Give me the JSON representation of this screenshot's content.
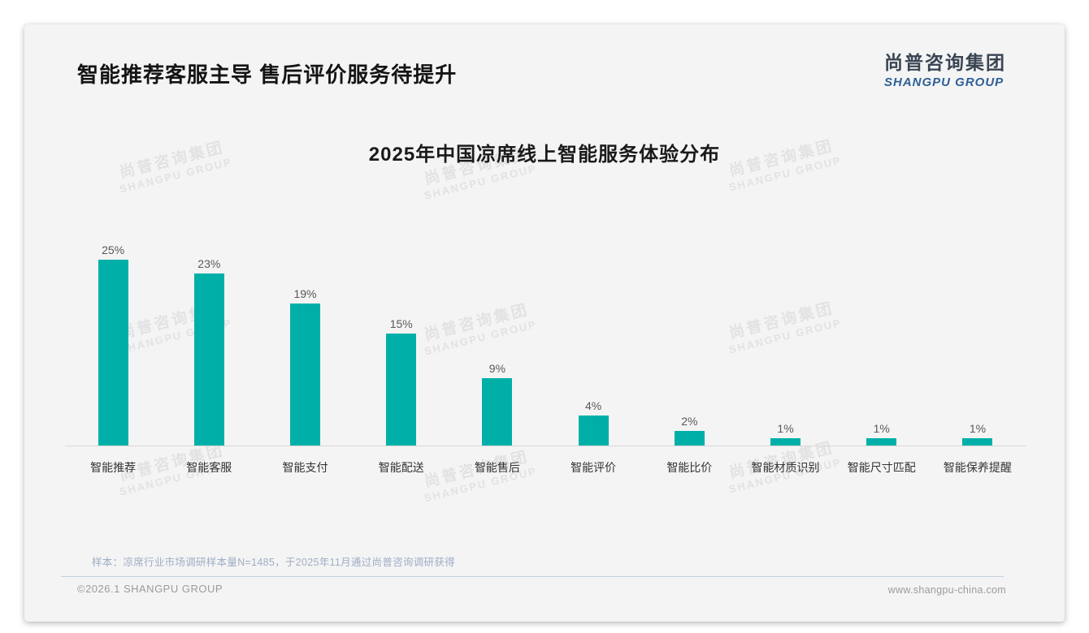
{
  "page": {
    "title": "智能推荐客服主导 售后评价服务待提升"
  },
  "logo": {
    "cn": "尚普咨询集团",
    "en": "SHANGPU GROUP",
    "en_color": "#2e5f94"
  },
  "watermark": {
    "cn": "尚普咨询集团",
    "en": "SHANGPU GROUP"
  },
  "chart_data": {
    "type": "bar",
    "title": "2025年中国凉席线上智能服务体验分布",
    "categories": [
      "智能推荐",
      "智能客服",
      "智能支付",
      "智能配送",
      "智能售后",
      "智能评价",
      "智能比价",
      "智能材质识别",
      "智能尺寸匹配",
      "智能保养提醒"
    ],
    "values": [
      25,
      23,
      19,
      15,
      9,
      4,
      2,
      1,
      1,
      1
    ],
    "unit": "%",
    "bar_color": "#00b0a8",
    "xlabel": "",
    "ylabel": "",
    "ylim": [
      0,
      27
    ],
    "grid": false,
    "legend": false,
    "data_labels": "above-bars"
  },
  "footnote": "样本：凉席行业市场调研样本量N=1485，于2025年11月通过尚普咨询调研获得",
  "footer": {
    "left": "©2026.1 SHANGPU GROUP",
    "right": "www.shangpu-china.com"
  }
}
